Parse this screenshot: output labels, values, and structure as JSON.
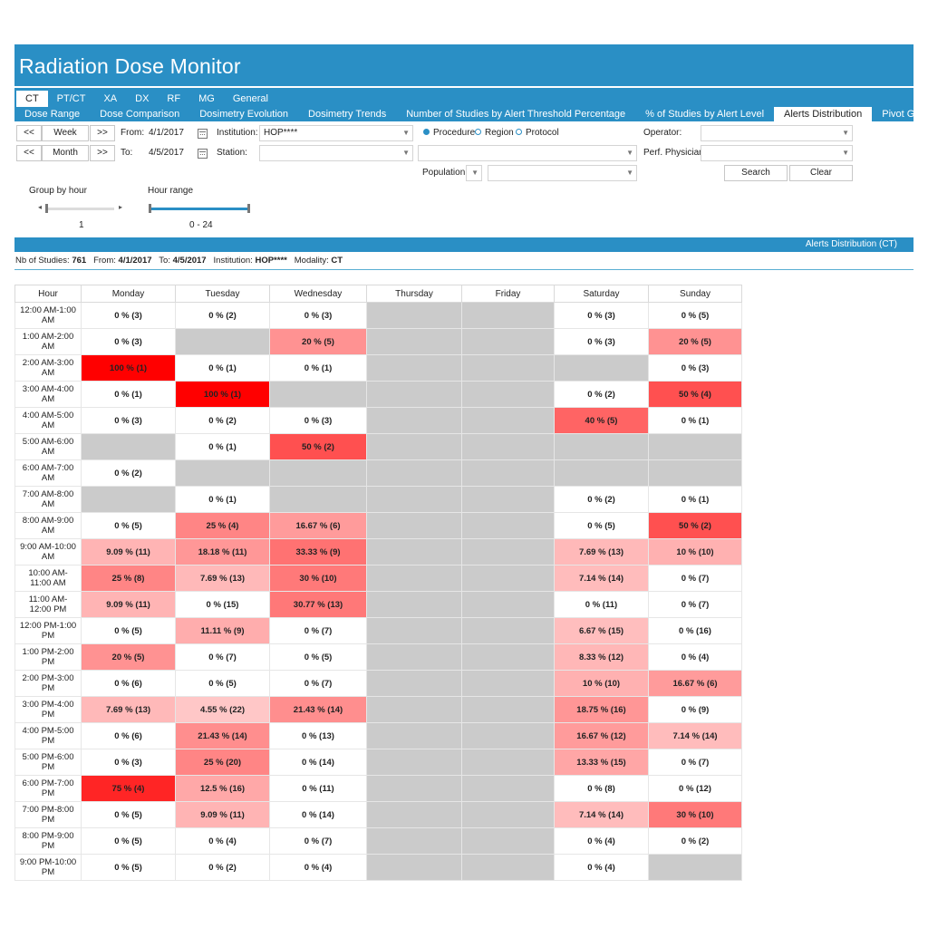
{
  "app": {
    "title": "Radiation Dose Monitor"
  },
  "modality_tabs": [
    {
      "label": "CT",
      "active": true
    },
    {
      "label": "PT/CT",
      "active": false
    },
    {
      "label": "XA",
      "active": false
    },
    {
      "label": "DX",
      "active": false
    },
    {
      "label": "RF",
      "active": false
    },
    {
      "label": "MG",
      "active": false
    },
    {
      "label": "General",
      "active": false
    }
  ],
  "report_tabs": [
    {
      "label": "Dose Range",
      "active": false
    },
    {
      "label": "Dose Comparison",
      "active": false
    },
    {
      "label": "Dosimetry Evolution",
      "active": false
    },
    {
      "label": "Dosimetry Trends",
      "active": false
    },
    {
      "label": "Number of Studies by Alert Threshold Percentage",
      "active": false
    },
    {
      "label": "% of Studies by Alert Level",
      "active": false
    },
    {
      "label": "Alerts Distribution",
      "active": true
    },
    {
      "label": "Pivot Grid",
      "active": false
    }
  ],
  "filters": {
    "prev": "<<",
    "next": ">>",
    "week": "Week",
    "month": "Month",
    "from_label": "From:",
    "from_value": "4/1/2017",
    "to_label": "To:",
    "to_value": "4/5/2017",
    "institution_label": "Institution:",
    "institution_value": "HOP****",
    "station_label": "Station:",
    "station_value": "",
    "radio_procedure": "Procedure",
    "radio_region": "Region",
    "radio_protocol": "Protocol",
    "population_label": "Population:",
    "operator_label": "Operator:",
    "physician_label": "Perf. Physician:",
    "search": "Search",
    "clear": "Clear",
    "group_by_hour_label": "Group by hour",
    "group_by_hour_value": "1",
    "hour_range_label": "Hour range",
    "hour_range_value": "0 - 24"
  },
  "result": {
    "bar_title": "Alerts Distribution (CT)",
    "summary": {
      "studies_label": "Nb of Studies:",
      "studies_value": "761",
      "from_label": "From:",
      "from_value": "4/1/2017",
      "to_label": "To:",
      "to_value": "4/5/2017",
      "institution_label": "Institution:",
      "institution_value": "HOP****",
      "modality_label": "Modality:",
      "modality_value": "CT"
    }
  },
  "colors": {
    "accent": "#2a8fc5",
    "empty_cell": "#cbcbcb",
    "alert_high": "#ff0000",
    "alert_low": "#ffe8e8"
  },
  "table": {
    "headers": [
      "Hour",
      "Monday",
      "Tuesday",
      "Wednesday",
      "Thursday",
      "Friday",
      "Saturday",
      "Sunday"
    ],
    "rows": [
      {
        "hour": "12:00 AM-1:00 AM",
        "cells": [
          [
            "0 % (3)",
            0
          ],
          [
            "0 % (2)",
            0
          ],
          [
            "0 % (3)",
            0
          ],
          null,
          null,
          [
            "0 % (3)",
            0
          ],
          [
            "0 % (5)",
            0
          ]
        ]
      },
      {
        "hour": "1:00 AM-2:00 AM",
        "cells": [
          [
            "0 % (3)",
            0
          ],
          null,
          [
            "20 % (5)",
            20
          ],
          null,
          null,
          [
            "0 % (3)",
            0
          ],
          [
            "20 % (5)",
            20
          ]
        ]
      },
      {
        "hour": "2:00 AM-3:00 AM",
        "cells": [
          [
            "100 % (1)",
            100
          ],
          [
            "0 % (1)",
            0
          ],
          [
            "0 % (1)",
            0
          ],
          null,
          null,
          null,
          [
            "0 % (3)",
            0
          ]
        ]
      },
      {
        "hour": "3:00 AM-4:00 AM",
        "cells": [
          [
            "0 % (1)",
            0
          ],
          [
            "100 % (1)",
            100
          ],
          null,
          null,
          null,
          [
            "0 % (2)",
            0
          ],
          [
            "50 % (4)",
            50
          ]
        ]
      },
      {
        "hour": "4:00 AM-5:00 AM",
        "cells": [
          [
            "0 % (3)",
            0
          ],
          [
            "0 % (2)",
            0
          ],
          [
            "0 % (3)",
            0
          ],
          null,
          null,
          [
            "40 % (5)",
            40
          ],
          [
            "0 % (1)",
            0
          ]
        ]
      },
      {
        "hour": "5:00 AM-6:00 AM",
        "cells": [
          null,
          [
            "0 % (1)",
            0
          ],
          [
            "50 % (2)",
            50
          ],
          null,
          null,
          null,
          null
        ]
      },
      {
        "hour": "6:00 AM-7:00 AM",
        "cells": [
          [
            "0 % (2)",
            0
          ],
          null,
          null,
          null,
          null,
          null,
          null
        ]
      },
      {
        "hour": "7:00 AM-8:00 AM",
        "cells": [
          null,
          [
            "0 % (1)",
            0
          ],
          null,
          null,
          null,
          [
            "0 % (2)",
            0
          ],
          [
            "0 % (1)",
            0
          ]
        ]
      },
      {
        "hour": "8:00 AM-9:00 AM",
        "cells": [
          [
            "0 % (5)",
            0
          ],
          [
            "25 % (4)",
            25
          ],
          [
            "16.67 % (6)",
            16.67
          ],
          null,
          null,
          [
            "0 % (5)",
            0
          ],
          [
            "50 % (2)",
            50
          ]
        ]
      },
      {
        "hour": "9:00 AM-10:00 AM",
        "cells": [
          [
            "9.09 % (11)",
            9.09
          ],
          [
            "18.18 % (11)",
            18.18
          ],
          [
            "33.33 % (9)",
            33.33
          ],
          null,
          null,
          [
            "7.69 % (13)",
            7.69
          ],
          [
            "10 % (10)",
            10
          ]
        ]
      },
      {
        "hour": "10:00 AM-11:00 AM",
        "cells": [
          [
            "25 % (8)",
            25
          ],
          [
            "7.69 % (13)",
            7.69
          ],
          [
            "30 % (10)",
            30
          ],
          null,
          null,
          [
            "7.14 % (14)",
            7.14
          ],
          [
            "0 % (7)",
            0
          ]
        ]
      },
      {
        "hour": "11:00 AM-12:00 PM",
        "cells": [
          [
            "9.09 % (11)",
            9.09
          ],
          [
            "0 % (15)",
            0
          ],
          [
            "30.77 % (13)",
            30.77
          ],
          null,
          null,
          [
            "0 % (11)",
            0
          ],
          [
            "0 % (7)",
            0
          ]
        ]
      },
      {
        "hour": "12:00 PM-1:00 PM",
        "cells": [
          [
            "0 % (5)",
            0
          ],
          [
            "11.11 % (9)",
            11.11
          ],
          [
            "0 % (7)",
            0
          ],
          null,
          null,
          [
            "6.67 % (15)",
            6.67
          ],
          [
            "0 % (16)",
            0
          ]
        ]
      },
      {
        "hour": "1:00 PM-2:00 PM",
        "cells": [
          [
            "20 % (5)",
            20
          ],
          [
            "0 % (7)",
            0
          ],
          [
            "0 % (5)",
            0
          ],
          null,
          null,
          [
            "8.33 % (12)",
            8.33
          ],
          [
            "0 % (4)",
            0
          ]
        ]
      },
      {
        "hour": "2:00 PM-3:00 PM",
        "cells": [
          [
            "0 % (6)",
            0
          ],
          [
            "0 % (5)",
            0
          ],
          [
            "0 % (7)",
            0
          ],
          null,
          null,
          [
            "10 % (10)",
            10
          ],
          [
            "16.67 % (6)",
            16.67
          ]
        ]
      },
      {
        "hour": "3:00 PM-4:00 PM",
        "cells": [
          [
            "7.69 % (13)",
            7.69
          ],
          [
            "4.55 % (22)",
            4.55
          ],
          [
            "21.43 % (14)",
            21.43
          ],
          null,
          null,
          [
            "18.75 % (16)",
            18.75
          ],
          [
            "0 % (9)",
            0
          ]
        ]
      },
      {
        "hour": "4:00 PM-5:00 PM",
        "cells": [
          [
            "0 % (6)",
            0
          ],
          [
            "21.43 % (14)",
            21.43
          ],
          [
            "0 % (13)",
            0
          ],
          null,
          null,
          [
            "16.67 % (12)",
            16.67
          ],
          [
            "7.14 % (14)",
            7.14
          ]
        ]
      },
      {
        "hour": "5:00 PM-6:00 PM",
        "cells": [
          [
            "0 % (3)",
            0
          ],
          [
            "25 % (20)",
            25
          ],
          [
            "0 % (14)",
            0
          ],
          null,
          null,
          [
            "13.33 % (15)",
            13.33
          ],
          [
            "0 % (7)",
            0
          ]
        ]
      },
      {
        "hour": "6:00 PM-7:00 PM",
        "cells": [
          [
            "75 % (4)",
            75
          ],
          [
            "12.5 % (16)",
            12.5
          ],
          [
            "0 % (11)",
            0
          ],
          null,
          null,
          [
            "0 % (8)",
            0
          ],
          [
            "0 % (12)",
            0
          ]
        ]
      },
      {
        "hour": "7:00 PM-8:00 PM",
        "cells": [
          [
            "0 % (5)",
            0
          ],
          [
            "9.09 % (11)",
            9.09
          ],
          [
            "0 % (14)",
            0
          ],
          null,
          null,
          [
            "7.14 % (14)",
            7.14
          ],
          [
            "30 % (10)",
            30
          ]
        ]
      },
      {
        "hour": "8:00 PM-9:00 PM",
        "cells": [
          [
            "0 % (5)",
            0
          ],
          [
            "0 % (4)",
            0
          ],
          [
            "0 % (7)",
            0
          ],
          null,
          null,
          [
            "0 % (4)",
            0
          ],
          [
            "0 % (2)",
            0
          ]
        ]
      },
      {
        "hour": "9:00 PM-10:00 PM",
        "cells": [
          [
            "0 % (5)",
            0
          ],
          [
            "0 % (2)",
            0
          ],
          [
            "0 % (4)",
            0
          ],
          null,
          null,
          [
            "0 % (4)",
            0
          ],
          null
        ]
      }
    ]
  }
}
